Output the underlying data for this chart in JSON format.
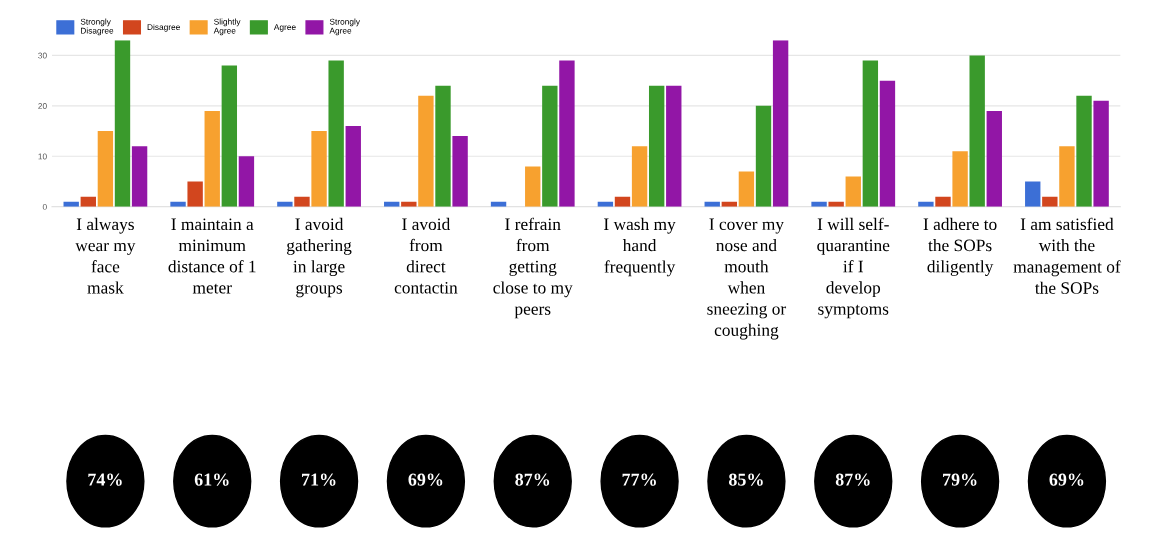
{
  "chart_data": {
    "type": "bar",
    "categories": [
      "I always\nwear my\nface\nmask",
      "I maintain a\nminimum\ndistance of 1\nmeter",
      "I avoid\ngathering\nin large\ngroups",
      "I avoid\nfrom\ndirect\ncontactin",
      "I refrain\nfrom\ngetting\nclose to my\npeers",
      "I wash my\nhand\nfrequently",
      "I cover my\nnose and\nmouth\nwhen\nsneezing or\ncoughing",
      "I will self-\nquarantine\nif I\ndevelop\nsymptoms",
      "I adhere to\nthe SOPs\ndiligently",
      "I am satisfied\nwith the\nmanagement of\nthe SOPs"
    ],
    "series": [
      {
        "name": "Strongly\nDisagree",
        "color": "#3c6fd6",
        "values": [
          1,
          1,
          1,
          1,
          1,
          1,
          1,
          1,
          1,
          5
        ]
      },
      {
        "name": "Disagree",
        "color": "#d2461e",
        "values": [
          2,
          5,
          2,
          1,
          0,
          2,
          1,
          1,
          2,
          2
        ]
      },
      {
        "name": "Slightly\nAgree",
        "color": "#f7a12f",
        "values": [
          15,
          19,
          15,
          22,
          8,
          12,
          7,
          6,
          11,
          12
        ]
      },
      {
        "name": "Agree",
        "color": "#3a9a2c",
        "values": [
          33,
          28,
          29,
          24,
          24,
          24,
          20,
          29,
          30,
          22
        ]
      },
      {
        "name": "Strongly\nAgree",
        "color": "#9216a6",
        "values": [
          12,
          10,
          16,
          14,
          29,
          24,
          33,
          25,
          19,
          21
        ]
      }
    ],
    "ylim": [
      0,
      33
    ],
    "yticks": [
      0,
      10,
      20,
      30
    ],
    "grid": "y",
    "legend": "top left",
    "annotations": [
      "74%",
      "61%",
      "71%",
      "69%",
      "87%",
      "77%",
      "85%",
      "87%",
      "79%",
      "69%"
    ]
  }
}
